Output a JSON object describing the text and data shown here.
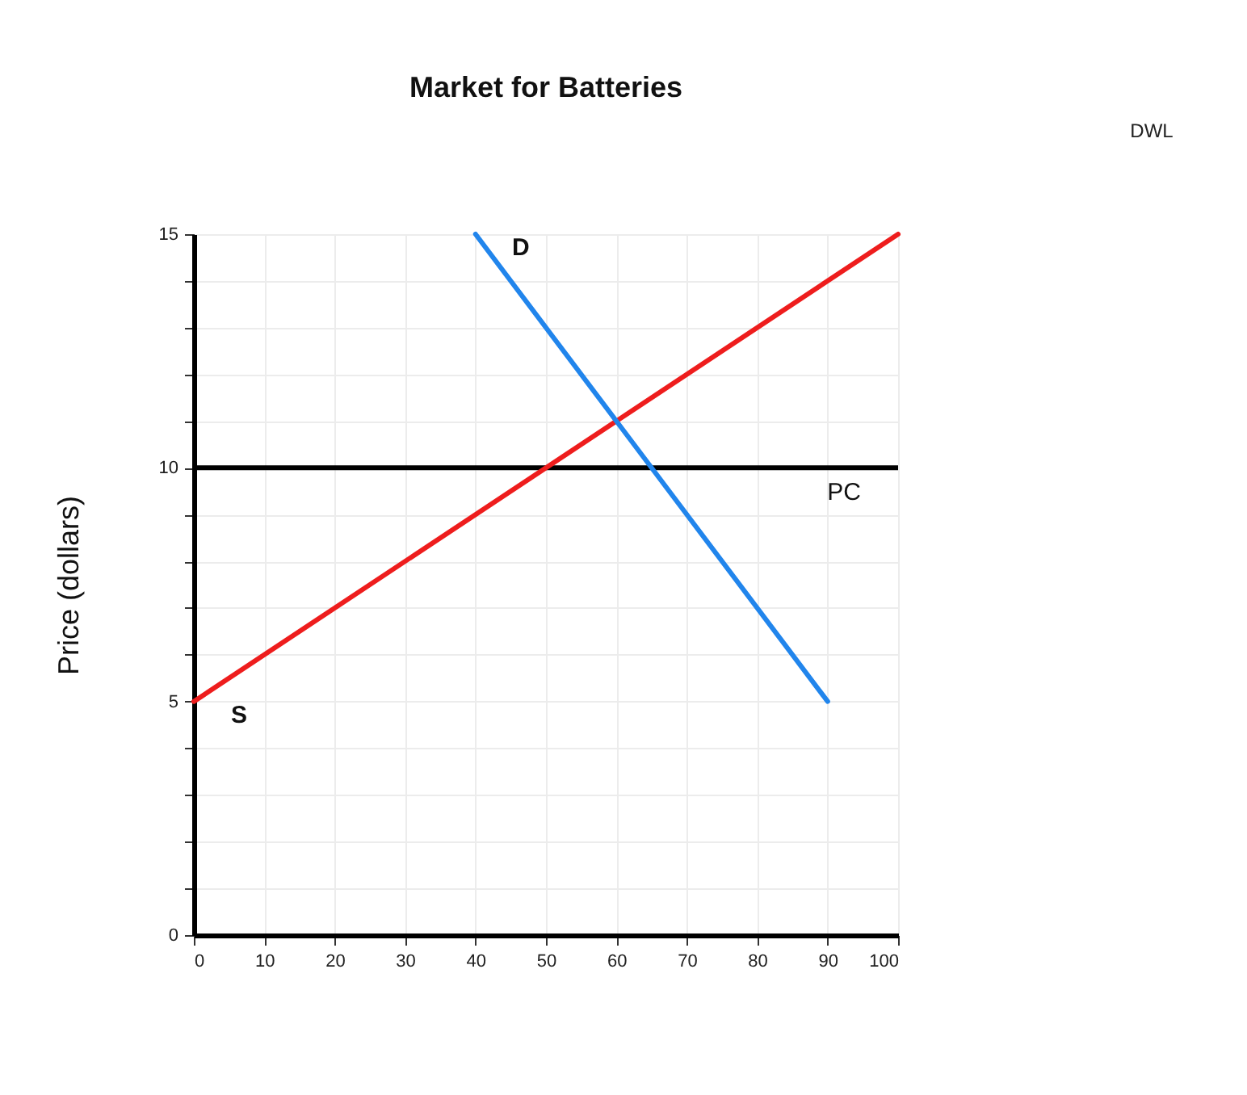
{
  "chart_data": {
    "type": "line",
    "title": "Market for Batteries",
    "ylabel": "Price (dollars)",
    "xlim": [
      0,
      100
    ],
    "xticks": [
      0,
      10,
      20,
      30,
      40,
      50,
      60,
      70,
      80,
      90,
      100
    ],
    "ylim": [
      0,
      15
    ],
    "yticks": [
      0,
      {
        "value": 1,
        "label": null
      },
      {
        "value": 2,
        "label": null
      },
      {
        "value": 3,
        "label": null
      },
      {
        "value": 4,
        "label": null
      },
      5,
      {
        "value": 6,
        "label": null
      },
      {
        "value": 7,
        "label": null
      },
      {
        "value": 8,
        "label": null
      },
      {
        "value": 9,
        "label": null
      },
      10,
      {
        "value": 11,
        "label": null
      },
      {
        "value": 12,
        "label": null
      },
      {
        "value": 13,
        "label": null
      },
      {
        "value": 14,
        "label": null
      },
      15
    ],
    "grid": true,
    "series": [
      {
        "name": "S",
        "color": "#ee1d1d",
        "x": [
          0,
          100
        ],
        "values": [
          5,
          15
        ]
      },
      {
        "name": "D",
        "color": "#2185ec",
        "x": [
          40,
          90
        ],
        "values": [
          15,
          5
        ]
      }
    ],
    "ref_lines": [
      {
        "axis": "y",
        "value": 10,
        "label": "PC",
        "color": "#000000"
      }
    ],
    "annotations": [
      "DWL"
    ]
  }
}
